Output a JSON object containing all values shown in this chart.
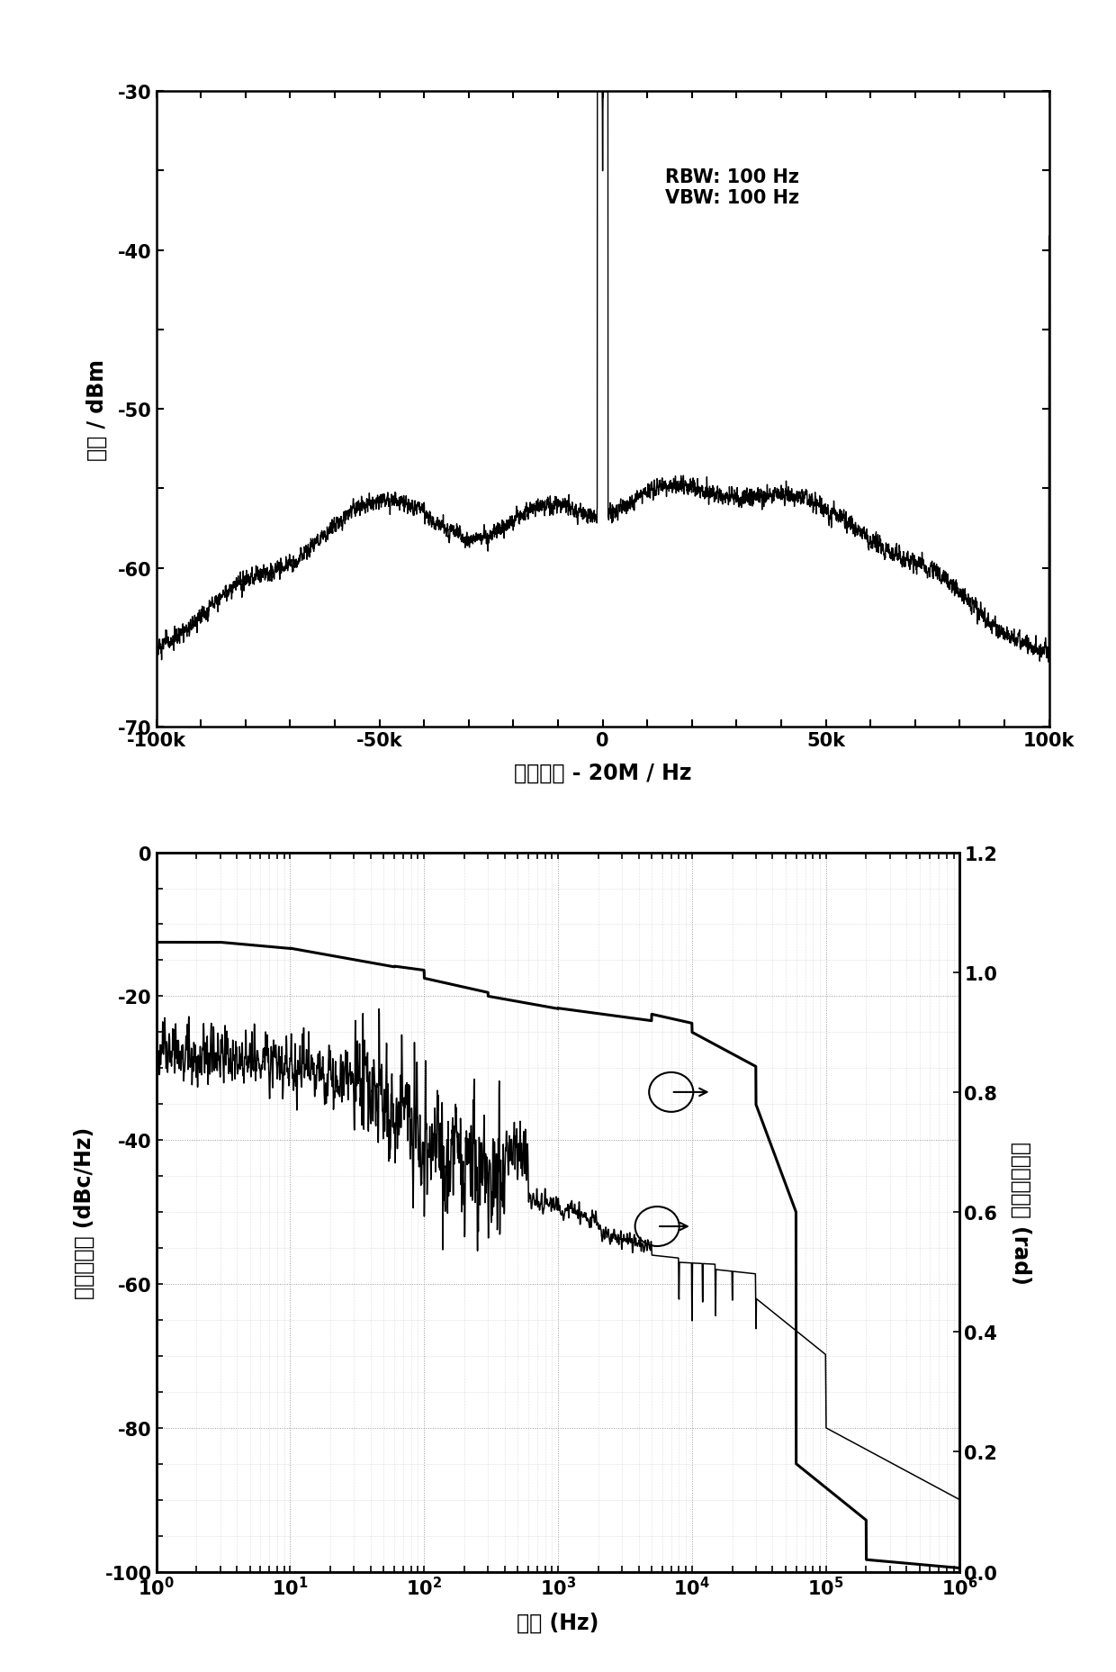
{
  "plot1": {
    "xlabel": "锁定拍频 - 20M / Hz",
    "ylabel": "功率 / dBm",
    "xlim": [
      -100000,
      100000
    ],
    "ylim": [
      -70,
      -30
    ],
    "yticks": [
      -70,
      -60,
      -50,
      -40,
      -30
    ],
    "xtick_labels": [
      "-100k",
      "-50k",
      "0",
      "50k",
      "100k"
    ],
    "xtick_vals": [
      -100000,
      -50000,
      0,
      50000,
      100000
    ],
    "annotation": "RBW: 100 Hz\nVBW: 100 Hz",
    "noise_floor": -65.5,
    "peak_top": -35.5,
    "color": "#000000"
  },
  "plot2": {
    "xlabel": "频率 (Hz)",
    "ylabel_left": "相位噪声谱 (dBc/Hz)",
    "ylabel_right": "积分相位噪声 (rad)",
    "xlim_log": [
      1,
      1000000
    ],
    "ylim_left": [
      -100,
      0
    ],
    "ylim_right": [
      0,
      1.2
    ],
    "yticks_left": [
      -100,
      -80,
      -60,
      -40,
      -20,
      0
    ],
    "yticks_right": [
      0.0,
      0.2,
      0.4,
      0.6,
      0.8,
      1.0,
      1.2
    ],
    "color": "#000000"
  },
  "background_color": "#ffffff",
  "linewidth": 1.2
}
